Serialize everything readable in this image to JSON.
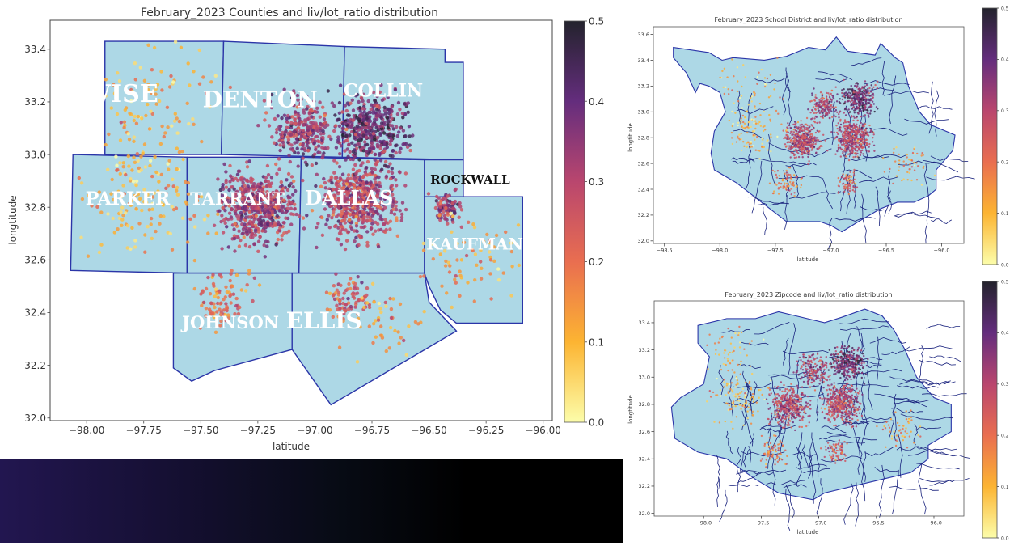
{
  "chart_data": [
    {
      "type": "scatter",
      "id": "counties",
      "title": "February_2023 Counties and liv/lot_ratio distribution",
      "xlabel": "latitude",
      "ylabel": "longtitude",
      "xlim": [
        -98.16,
        -95.96
      ],
      "ylim": [
        31.99,
        33.51
      ],
      "xticks": [
        -98.0,
        -97.75,
        -97.5,
        -97.25,
        -97.0,
        -96.75,
        -96.5,
        -96.25,
        -96.0
      ],
      "xtick_labels": [
        "−98.00",
        "−97.75",
        "−97.50",
        "−97.25",
        "−97.00",
        "−96.75",
        "−96.50",
        "−96.25",
        "−96.00"
      ],
      "yticks": [
        32.0,
        32.2,
        32.4,
        32.6,
        32.8,
        33.0,
        33.2,
        33.4
      ],
      "ytick_labels": [
        "32.0",
        "32.2",
        "32.4",
        "32.6",
        "32.8",
        "33.0",
        "33.2",
        "33.4"
      ],
      "colorbar": {
        "min": 0.0,
        "max": 0.5,
        "ticks": [
          "0.0",
          "0.1",
          "0.2",
          "0.3",
          "0.4",
          "0.5"
        ],
        "colormap": "inferno_r"
      },
      "counties": [
        {
          "name": "WISE",
          "label_at": [
            -97.85,
            33.2
          ],
          "poly": [
            [
              -97.92,
              33.43
            ],
            [
              -97.4,
              33.43
            ],
            [
              -97.41,
              33.0
            ],
            [
              -97.92,
              33.0
            ]
          ]
        },
        {
          "name": "DENTON",
          "label_at": [
            -97.24,
            33.18
          ],
          "poly": [
            [
              -97.4,
              33.43
            ],
            [
              -96.87,
              33.41
            ],
            [
              -96.88,
              32.99
            ],
            [
              -97.41,
              33.0
            ]
          ]
        },
        {
          "name": "COLLIN",
          "label_at": [
            -96.7,
            33.22
          ],
          "poly": [
            [
              -96.87,
              33.41
            ],
            [
              -96.43,
              33.4
            ],
            [
              -96.43,
              33.35
            ],
            [
              -96.35,
              33.35
            ],
            [
              -96.35,
              32.98
            ],
            [
              -96.88,
              32.99
            ]
          ]
        },
        {
          "name": "PARKER",
          "label_at": [
            -97.82,
            32.81
          ],
          "poly": [
            [
              -98.06,
              33.0
            ],
            [
              -97.56,
              32.99
            ],
            [
              -97.56,
              32.55
            ],
            [
              -98.07,
              32.56
            ]
          ]
        },
        {
          "name": "TARRANT",
          "label_at": [
            -97.34,
            32.81
          ],
          "poly": [
            [
              -97.56,
              32.99
            ],
            [
              -97.06,
              32.99
            ],
            [
              -97.07,
              32.55
            ],
            [
              -97.56,
              32.55
            ]
          ]
        },
        {
          "name": "DALLAS",
          "label_at": [
            -96.85,
            32.81
          ],
          "poly": [
            [
              -97.06,
              32.99
            ],
            [
              -96.52,
              32.98
            ],
            [
              -96.52,
              32.55
            ],
            [
              -97.07,
              32.55
            ]
          ]
        },
        {
          "name": "ROCKWALL",
          "label_at": [
            -96.32,
            32.89
          ],
          "dark": true,
          "poly": [
            [
              -96.52,
              32.98
            ],
            [
              -96.35,
              32.98
            ],
            [
              -96.35,
              32.84
            ],
            [
              -96.52,
              32.84
            ]
          ]
        },
        {
          "name": "KAUFMAN",
          "label_at": [
            -96.3,
            32.64
          ],
          "poly": [
            [
              -96.52,
              32.84
            ],
            [
              -96.09,
              32.84
            ],
            [
              -96.09,
              32.36
            ],
            [
              -96.38,
              32.36
            ],
            [
              -96.45,
              32.41
            ],
            [
              -96.5,
              32.5
            ],
            [
              -96.52,
              32.55
            ]
          ]
        },
        {
          "name": "JOHNSON",
          "label_at": [
            -97.37,
            32.34
          ],
          "poly": [
            [
              -97.62,
              32.55
            ],
            [
              -97.1,
              32.55
            ],
            [
              -97.1,
              32.26
            ],
            [
              -97.44,
              32.18
            ],
            [
              -97.54,
              32.14
            ],
            [
              -97.62,
              32.19
            ]
          ]
        },
        {
          "name": "ELLIS",
          "label_at": [
            -96.96,
            32.34
          ],
          "poly": [
            [
              -97.1,
              32.55
            ],
            [
              -96.52,
              32.55
            ],
            [
              -96.5,
              32.44
            ],
            [
              -96.38,
              32.33
            ],
            [
              -96.93,
              32.05
            ],
            [
              -97.1,
              32.26
            ]
          ]
        }
      ]
    },
    {
      "type": "scatter",
      "id": "school-district",
      "title": "February_2023 School District and liv/lot_ratio distribution",
      "xlabel": "latitude",
      "ylabel": "longtitude",
      "xlim": [
        -98.6,
        -95.8
      ],
      "ylim": [
        31.98,
        33.66
      ],
      "xticks": [
        -98.5,
        -98.0,
        -97.5,
        -97.0,
        -96.5,
        -96.0
      ],
      "xtick_labels": [
        "−98.5",
        "−98.0",
        "−97.5",
        "−97.0",
        "−96.5",
        "−96.0"
      ],
      "yticks": [
        32.0,
        32.2,
        32.4,
        32.6,
        32.8,
        33.0,
        33.2,
        33.4,
        33.6
      ],
      "ytick_labels": [
        "32.0",
        "32.2",
        "32.4",
        "32.6",
        "32.8",
        "33.0",
        "33.2",
        "33.4",
        "33.6"
      ],
      "colorbar": {
        "min": 0.0,
        "max": 0.5,
        "ticks": [
          "0.0",
          "0.1",
          "0.2",
          "0.3",
          "0.4",
          "0.5"
        ],
        "colormap": "inferno_r"
      }
    },
    {
      "type": "scatter",
      "id": "zipcode",
      "title": "February_2023 Zipcode and liv/lot_ratio distribution",
      "xlabel": "latitude",
      "ylabel": "longtitude",
      "xlim": [
        -98.43,
        -95.74
      ],
      "ylim": [
        31.98,
        33.56
      ],
      "xticks": [
        -98.0,
        -97.5,
        -97.0,
        -96.5,
        -96.0
      ],
      "xtick_labels": [
        "−98.0",
        "−97.5",
        "−97.0",
        "−96.5",
        "−96.0"
      ],
      "yticks": [
        32.0,
        32.2,
        32.4,
        32.6,
        32.8,
        33.0,
        33.2,
        33.4
      ],
      "ytick_labels": [
        "32.0",
        "32.2",
        "32.4",
        "32.6",
        "32.8",
        "33.0",
        "33.2",
        "33.4"
      ],
      "colorbar": {
        "min": 0.0,
        "max": 0.5,
        "ticks": [
          "0.0",
          "0.1",
          "0.2",
          "0.3",
          "0.4",
          "0.5"
        ],
        "colormap": "inferno_r"
      }
    }
  ],
  "colors": {
    "region_fill": "#add8e6",
    "region_edge": "#2b35a8",
    "gradient_start": "#221650",
    "gradient_end": "#000000"
  }
}
